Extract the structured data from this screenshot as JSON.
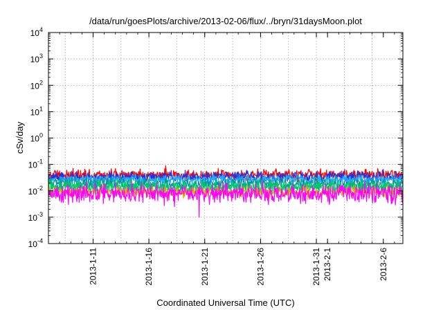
{
  "chart_data": {
    "type": "line",
    "title": "/data/run/goesPlots/archive/2013-02-06/flux/../bryn/31daysMoon.plot",
    "xlabel": "Coordinated Universal Time (UTC)",
    "ylabel": "cSv/day",
    "yscale": "log",
    "ylim": [
      0.0001,
      10000
    ],
    "xlim": [
      "2013-01-07T00:00",
      "2013-02-07T18:00"
    ],
    "grid": true,
    "yticks": [
      {
        "value": 0.0001,
        "base": "10",
        "exp": "-4"
      },
      {
        "value": 0.001,
        "base": "10",
        "exp": "-3"
      },
      {
        "value": 0.01,
        "base": "10",
        "exp": "-2"
      },
      {
        "value": 0.1,
        "base": "10",
        "exp": "-1"
      },
      {
        "value": 1,
        "base": "10",
        "exp": "0"
      },
      {
        "value": 10,
        "base": "10",
        "exp": "1"
      },
      {
        "value": 100,
        "base": "10",
        "exp": "2"
      },
      {
        "value": 1000,
        "base": "10",
        "exp": "3"
      },
      {
        "value": 10000,
        "base": "10",
        "exp": "4"
      }
    ],
    "xticks": [
      {
        "label": "2013-1-11",
        "date": "2013-01-11"
      },
      {
        "label": "2013-1-16",
        "date": "2013-01-16"
      },
      {
        "label": "2013-1-21",
        "date": "2013-01-21"
      },
      {
        "label": "2013-1-26",
        "date": "2013-01-26"
      },
      {
        "label": "2013-1-31",
        "date": "2013-01-31"
      },
      {
        "label": "2013-2-1",
        "date": "2013-02-01"
      },
      {
        "label": "2013-2-6",
        "date": "2013-02-06"
      }
    ],
    "series": [
      {
        "color": "#ff0000",
        "base": 0.04,
        "spread": 0.3,
        "spikes": [
          [
            "2013-01-17T12:00",
            0.09
          ],
          [
            "2013-01-13T00:00",
            0.07
          ],
          [
            "2013-02-05T12:00",
            0.07
          ]
        ]
      },
      {
        "color": "#2233dd",
        "base": 0.033,
        "spread": 0.3,
        "spikes": [
          [
            "2013-01-19T06:00",
            0.06
          ],
          [
            "2013-02-06T00:00",
            0.065
          ]
        ]
      },
      {
        "color": "#22aaff",
        "base": 0.027,
        "spread": 0.25,
        "spikes": []
      },
      {
        "color": "#009999",
        "base": 0.018,
        "spread": 0.35,
        "spikes": []
      },
      {
        "color": "#00cc66",
        "base": 0.014,
        "spread": 0.35,
        "spikes": []
      },
      {
        "color": "#ddaa00",
        "base": 0.009,
        "spread": 0.3,
        "spikes": []
      },
      {
        "color": "#ff00ff",
        "base": 0.008,
        "spread": 0.55,
        "spikes": [
          [
            "2013-01-20T12:00",
            0.001
          ]
        ]
      }
    ]
  }
}
